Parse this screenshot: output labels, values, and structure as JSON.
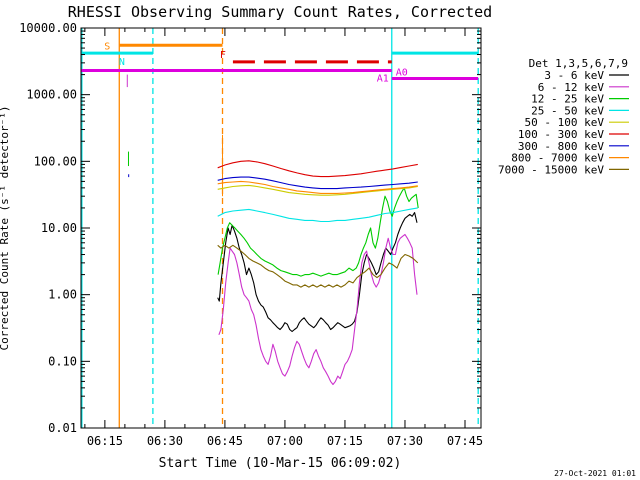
{
  "chart_data": {
    "type": "line",
    "title": "RHESSI Observing Summary Count Rates, Corrected",
    "xlabel": "Start Time (10-Mar-15 06:09:02)",
    "ylabel": "Corrected Count Rate (s-1 detector-1)",
    "ylabel_visible": "Corrected Count Rate (s⁻¹ detector⁻¹)",
    "y_scale": "log",
    "xlim_minutes": [
      369.033,
      469.0
    ],
    "ylim": [
      0.01,
      10000
    ],
    "x_ticks": [
      {
        "t": 375,
        "label": "06:15"
      },
      {
        "t": 390,
        "label": "06:30"
      },
      {
        "t": 405,
        "label": "06:45"
      },
      {
        "t": 420,
        "label": "07:00"
      },
      {
        "t": 435,
        "label": "07:15"
      },
      {
        "t": 450,
        "label": "07:30"
      },
      {
        "t": 465,
        "label": "07:45"
      }
    ],
    "y_ticks": [
      {
        "v": 0.01,
        "label": "0.01"
      },
      {
        "v": 0.1,
        "label": "0.10"
      },
      {
        "v": 1,
        "label": "1.00"
      },
      {
        "v": 10,
        "label": "10.00"
      },
      {
        "v": 100,
        "label": "100.00"
      },
      {
        "v": 1000,
        "label": "1000.00"
      },
      {
        "v": 10000,
        "label": "10000.00"
      }
    ],
    "legend_title": "Det 1,3,5,6,7,9",
    "legend_position": "right",
    "series": [
      {
        "name": "3 - 6 keV",
        "color": "#000000",
        "x": [
          403.2,
          403.6,
          404.0,
          404.6,
          405.2,
          405.8,
          406.3,
          406.8,
          407.4,
          408.0,
          408.6,
          409.2,
          409.8,
          410.4,
          411.0,
          411.6,
          412.2,
          412.8,
          413.4,
          414.0,
          414.6,
          415.2,
          415.8,
          416.4,
          417.0,
          417.6,
          418.2,
          418.8,
          419.4,
          420.0,
          420.6,
          421.2,
          421.8,
          422.4,
          423.0,
          423.6,
          424.2,
          424.8,
          425.4,
          426.0,
          426.6,
          427.2,
          427.8,
          428.4,
          429.0,
          429.6,
          430.2,
          430.8,
          431.4,
          432.0,
          432.6,
          433.2,
          433.8,
          434.4,
          435.0,
          435.6,
          436.2,
          436.8,
          437.4,
          438.0,
          438.6,
          439.2,
          439.8,
          440.4,
          441.0,
          441.6,
          442.2,
          442.8,
          443.4,
          444.0,
          444.6,
          445.2,
          445.8,
          446.4,
          447.0,
          447.6,
          448.2,
          448.8,
          449.4,
          450.0,
          450.6,
          451.2,
          451.8,
          452.4,
          453.0
        ],
        "y": [
          0.9,
          0.8,
          1.5,
          3.0,
          6.0,
          10.0,
          8.0,
          11.0,
          9.0,
          7.0,
          5.0,
          4.0,
          3.0,
          2.0,
          2.5,
          2.0,
          1.5,
          1.0,
          0.8,
          0.7,
          0.65,
          0.55,
          0.45,
          0.42,
          0.38,
          0.35,
          0.32,
          0.3,
          0.33,
          0.38,
          0.36,
          0.3,
          0.28,
          0.3,
          0.32,
          0.38,
          0.42,
          0.45,
          0.4,
          0.36,
          0.34,
          0.32,
          0.35,
          0.4,
          0.45,
          0.42,
          0.38,
          0.35,
          0.3,
          0.32,
          0.35,
          0.38,
          0.36,
          0.34,
          0.32,
          0.33,
          0.34,
          0.36,
          0.4,
          0.55,
          1.0,
          2.0,
          3.0,
          4.0,
          3.5,
          3.0,
          2.5,
          2.0,
          2.2,
          3.0,
          4.0,
          5.0,
          4.5,
          4.0,
          5.0,
          6.0,
          8.0,
          10.0,
          12.0,
          14.0,
          15.0,
          16.0,
          15.0,
          17.0,
          12.0
        ]
      },
      {
        "name": "6 - 12 keV",
        "color": "#cc33cc",
        "x": [
          403.5,
          404.0,
          404.6,
          405.2,
          405.8,
          406.3,
          406.8,
          407.4,
          408.0,
          408.6,
          409.2,
          409.8,
          410.4,
          411.0,
          411.6,
          412.2,
          412.8,
          413.4,
          414.0,
          414.6,
          415.2,
          415.8,
          416.4,
          417.0,
          417.6,
          418.2,
          418.8,
          419.4,
          420.0,
          420.6,
          421.2,
          421.8,
          422.4,
          423.0,
          423.6,
          424.2,
          424.8,
          425.4,
          426.0,
          426.6,
          427.2,
          427.8,
          428.4,
          429.0,
          429.6,
          430.2,
          430.8,
          431.4,
          432.0,
          432.6,
          433.2,
          433.8,
          434.4,
          435.0,
          435.6,
          436.2,
          436.8,
          437.4,
          438.0,
          438.6,
          439.2,
          439.8,
          440.4,
          441.0,
          441.6,
          442.2,
          442.8,
          443.4,
          444.0,
          444.6,
          445.2,
          445.8,
          446.4,
          447.0,
          447.6,
          448.2,
          448.8,
          449.4,
          450.0,
          450.6,
          451.2,
          451.8,
          452.4,
          453.0
        ],
        "y": [
          0.25,
          0.3,
          0.6,
          1.5,
          3.0,
          5.0,
          4.5,
          4.0,
          3.0,
          2.0,
          1.3,
          1.0,
          0.9,
          0.8,
          0.6,
          0.5,
          0.35,
          0.22,
          0.15,
          0.12,
          0.1,
          0.09,
          0.12,
          0.18,
          0.14,
          0.1,
          0.08,
          0.065,
          0.06,
          0.07,
          0.085,
          0.12,
          0.16,
          0.2,
          0.18,
          0.14,
          0.11,
          0.09,
          0.08,
          0.1,
          0.13,
          0.15,
          0.12,
          0.1,
          0.08,
          0.07,
          0.06,
          0.05,
          0.045,
          0.05,
          0.06,
          0.055,
          0.07,
          0.09,
          0.1,
          0.12,
          0.15,
          0.3,
          0.6,
          1.5,
          3.0,
          4.0,
          4.5,
          3.0,
          2.0,
          1.5,
          1.3,
          1.5,
          2.0,
          3.0,
          5.0,
          7.0,
          5.0,
          4.0,
          4.0,
          6.0,
          7.0,
          7.5,
          8.0,
          7.0,
          6.0,
          5.0,
          2.0,
          1.0
        ]
      },
      {
        "name": "12 - 25 keV",
        "color": "#00cc00",
        "x": [
          403.3,
          403.8,
          404.4,
          405.0,
          405.6,
          406.2,
          406.8,
          407.5,
          408.2,
          409.0,
          409.8,
          410.6,
          411.4,
          412.2,
          413.0,
          414.0,
          415.0,
          416.0,
          417.0,
          418.0,
          419.0,
          420.0,
          421.0,
          422.0,
          423.0,
          424.0,
          425.0,
          426.0,
          427.0,
          428.0,
          429.0,
          430.0,
          431.0,
          432.0,
          433.0,
          434.0,
          435.0,
          436.0,
          437.0,
          437.8,
          438.4,
          439.0,
          439.6,
          440.2,
          440.8,
          441.4,
          442.0,
          442.6,
          443.2,
          443.8,
          444.4,
          445.0,
          445.6,
          446.2,
          446.8,
          447.4,
          448.0,
          448.6,
          449.2,
          449.8,
          450.4,
          451.0,
          451.6,
          452.2,
          452.8,
          453.3
        ],
        "y": [
          2.0,
          3.0,
          5.0,
          7.0,
          10.0,
          12.0,
          11.0,
          10.0,
          9.0,
          8.0,
          7.0,
          6.0,
          5.0,
          4.5,
          4.0,
          3.5,
          3.2,
          3.0,
          2.8,
          2.5,
          2.3,
          2.2,
          2.1,
          2.0,
          2.0,
          1.9,
          2.0,
          2.0,
          2.1,
          2.0,
          1.9,
          2.0,
          2.1,
          2.0,
          2.0,
          2.1,
          2.2,
          2.5,
          2.3,
          2.5,
          3.0,
          4.0,
          5.0,
          6.0,
          8.0,
          10.0,
          6.0,
          5.0,
          7.0,
          12.0,
          20.0,
          30.0,
          25.0,
          18.0,
          15.0,
          20.0,
          25.0,
          30.0,
          35.0,
          40.0,
          30.0,
          25.0,
          28.0,
          30.0,
          32.0,
          20.0
        ]
      },
      {
        "name": "25 - 50 keV",
        "color": "#00e5e5",
        "x": [
          403.2,
          405.0,
          407.0,
          409.0,
          411.0,
          413.0,
          415.0,
          417.0,
          419.0,
          421.0,
          423.0,
          425.0,
          427.0,
          429.0,
          431.0,
          433.0,
          435.0,
          437.0,
          439.0,
          441.0,
          443.0,
          445.0,
          447.0,
          449.0,
          451.0,
          453.2
        ],
        "y": [
          15.0,
          17.0,
          18.0,
          18.5,
          19.0,
          18.0,
          17.0,
          16.0,
          15.0,
          14.0,
          13.5,
          13.0,
          13.0,
          12.5,
          12.5,
          13.0,
          13.0,
          13.5,
          14.0,
          14.5,
          15.5,
          16.5,
          17.0,
          18.0,
          19.0,
          20.0
        ]
      },
      {
        "name": "50 - 100 keV",
        "color": "#cccc00",
        "x": [
          403.2,
          405.0,
          407.0,
          409.0,
          411.0,
          413.0,
          415.0,
          417.0,
          419.0,
          421.0,
          423.0,
          425.0,
          427.0,
          429.0,
          431.0,
          433.0,
          435.0,
          437.0,
          439.0,
          441.0,
          443.0,
          445.0,
          447.0,
          449.0,
          451.0,
          453.2
        ],
        "y": [
          38.0,
          40.0,
          42.0,
          43.0,
          43.5,
          42.0,
          40.0,
          38.0,
          36.0,
          34.0,
          33.0,
          32.0,
          31.5,
          31.0,
          31.0,
          31.5,
          32.0,
          33.0,
          34.0,
          35.0,
          36.0,
          37.0,
          38.0,
          39.0,
          40.0,
          42.0
        ]
      },
      {
        "name": "100 - 300 keV",
        "color": "#dd0000",
        "x": [
          403.2,
          405.0,
          407.0,
          409.0,
          411.0,
          413.0,
          415.0,
          417.0,
          419.0,
          421.0,
          423.0,
          425.0,
          427.0,
          429.0,
          431.0,
          433.0,
          435.0,
          437.0,
          439.0,
          441.0,
          443.0,
          445.0,
          447.0,
          449.0,
          451.0,
          453.2
        ],
        "y": [
          80.0,
          88.0,
          95.0,
          100.0,
          102.0,
          98.0,
          92.0,
          85.0,
          78.0,
          72.0,
          67.0,
          63.0,
          60.0,
          59.0,
          59.0,
          60.0,
          61.0,
          63.0,
          65.0,
          68.0,
          71.0,
          74.0,
          77.0,
          81.0,
          85.0,
          90.0
        ]
      },
      {
        "name": "300 - 800 keV",
        "color": "#0000cc",
        "x": [
          403.2,
          405.0,
          407.0,
          409.0,
          411.0,
          413.0,
          415.0,
          417.0,
          419.0,
          421.0,
          423.0,
          425.0,
          427.0,
          429.0,
          431.0,
          433.0,
          435.0,
          437.0,
          439.0,
          441.0,
          443.0,
          445.0,
          447.0,
          449.0,
          451.0,
          453.2
        ],
        "y": [
          52.0,
          55.0,
          57.0,
          58.0,
          58.0,
          56.0,
          54.0,
          51.0,
          48.0,
          45.0,
          43.0,
          41.0,
          40.0,
          39.0,
          39.0,
          39.0,
          40.0,
          40.5,
          41.0,
          42.0,
          43.0,
          44.0,
          45.0,
          46.0,
          47.0,
          49.0
        ]
      },
      {
        "name": "800 - 7000 keV",
        "color": "#ff8800",
        "x": [
          403.2,
          405.0,
          407.0,
          409.0,
          411.0,
          413.0,
          415.0,
          417.0,
          419.0,
          421.0,
          423.0,
          425.0,
          427.0,
          429.0,
          431.0,
          433.0,
          435.0,
          437.0,
          439.0,
          441.0,
          443.0,
          445.0,
          447.0,
          449.0,
          451.0,
          453.2
        ],
        "y": [
          46.0,
          48.0,
          49.0,
          50.0,
          49.0,
          47.0,
          45.0,
          42.0,
          40.0,
          38.0,
          36.0,
          35.0,
          34.0,
          33.0,
          33.0,
          33.0,
          33.5,
          34.0,
          35.0,
          36.0,
          37.0,
          38.0,
          39.0,
          40.0,
          41.0,
          43.0
        ]
      },
      {
        "name": "7000 - 15000 keV",
        "color": "#806600",
        "x": [
          403.2,
          404.0,
          405.0,
          406.0,
          407.0,
          408.0,
          409.0,
          410.0,
          411.0,
          412.0,
          413.0,
          414.0,
          415.0,
          416.0,
          417.0,
          418.0,
          419.0,
          420.0,
          421.0,
          422.0,
          423.0,
          424.0,
          425.0,
          426.0,
          427.0,
          428.0,
          429.0,
          430.0,
          431.0,
          432.0,
          433.0,
          434.0,
          435.0,
          436.0,
          437.0,
          438.0,
          439.0,
          440.0,
          441.0,
          442.0,
          443.0,
          444.0,
          445.0,
          446.0,
          447.0,
          448.0,
          449.0,
          450.0,
          451.0,
          452.0,
          453.2
        ],
        "y": [
          5.5,
          5.0,
          5.5,
          5.0,
          5.5,
          5.0,
          4.5,
          4.0,
          3.5,
          3.2,
          3.0,
          2.8,
          2.5,
          2.3,
          2.2,
          2.0,
          1.8,
          1.6,
          1.5,
          1.4,
          1.4,
          1.3,
          1.4,
          1.3,
          1.4,
          1.3,
          1.4,
          1.3,
          1.4,
          1.3,
          1.4,
          1.3,
          1.4,
          1.6,
          1.5,
          1.8,
          2.0,
          2.2,
          2.5,
          2.0,
          1.8,
          2.0,
          2.5,
          3.0,
          2.8,
          2.5,
          3.5,
          4.0,
          3.8,
          3.5,
          3.0
        ]
      }
    ],
    "spikes": [
      {
        "series": "6 - 12 keV",
        "t": 380.6,
        "y_lo": 1300,
        "y_hi": 2000
      },
      {
        "series": "12 - 25 keV",
        "t": 380.9,
        "y_lo": 85,
        "y_hi": 140
      },
      {
        "series": "300 - 800 keV",
        "t": 380.95,
        "y_lo": 58,
        "y_hi": 64
      },
      {
        "series": "800 - 7000 keV",
        "t": 404.4,
        "y_lo": 30,
        "y_hi": 250
      }
    ],
    "flag_bars": [
      {
        "label": "S",
        "color": "#ff8800",
        "t_start": 378.6,
        "t_end": 404.4,
        "y": 5500
      },
      {
        "label": "N",
        "color": "#00e5e5",
        "t_start": 369.03,
        "t_end": 387.0,
        "y": 4200
      },
      {
        "label": "F",
        "color": "#dd0000",
        "t_start": 407.0,
        "t_end": 446.7,
        "y": 3100,
        "dashed": true
      },
      {
        "label": "A1",
        "color": "#dd00dd",
        "t_start": 369.03,
        "t_end": 446.7,
        "y": 2300
      },
      {
        "label": "A0",
        "color": "#dd00dd",
        "t_start": 446.7,
        "t_end": 468.3,
        "y": 1750
      },
      {
        "label": "",
        "color": "#00e5e5",
        "t_start": 446.7,
        "t_end": 468.3,
        "y": 4200
      }
    ],
    "vertical_lines": [
      {
        "t": 369.25,
        "color": "#00e5e5",
        "style": "solid"
      },
      {
        "t": 378.6,
        "color": "#ff8800",
        "style": "solid"
      },
      {
        "t": 387.0,
        "color": "#00e5e5",
        "style": "dashed"
      },
      {
        "t": 404.4,
        "color": "#ff8800",
        "style": "dashed"
      },
      {
        "t": 446.7,
        "color": "#00e5e5",
        "style": "solid"
      },
      {
        "t": 468.3,
        "color": "#00e5e5",
        "style": "dashed"
      }
    ],
    "footer_timestamp": "27-Oct-2021 01:01"
  }
}
